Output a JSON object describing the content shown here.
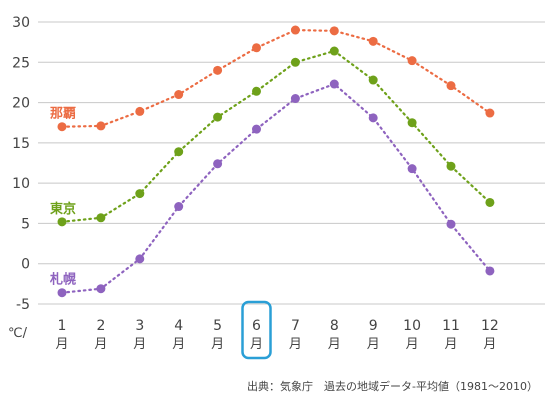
{
  "chart_data": {
    "type": "line",
    "x": [
      "1",
      "2",
      "3",
      "4",
      "5",
      "6",
      "7",
      "8",
      "9",
      "10",
      "11",
      "12"
    ],
    "x_unit": "月",
    "highlighted_x": "6",
    "y_unit": "℃/",
    "ylim": [
      -5,
      30
    ],
    "yticks": [
      30,
      25,
      20,
      15,
      10,
      5,
      0,
      -5
    ],
    "grid": true,
    "series": [
      {
        "name": "那覇",
        "color": "#ec6c43",
        "values": [
          17.0,
          17.1,
          18.9,
          21.0,
          24.0,
          26.8,
          29.0,
          28.9,
          27.6,
          25.2,
          22.1,
          18.7
        ]
      },
      {
        "name": "東京",
        "color": "#6ea11a",
        "values": [
          5.2,
          5.7,
          8.7,
          13.9,
          18.2,
          21.4,
          25.0,
          26.4,
          22.8,
          17.5,
          12.1,
          7.6
        ]
      },
      {
        "name": "札幌",
        "color": "#8e63bf",
        "values": [
          -3.6,
          -3.1,
          0.6,
          7.1,
          12.4,
          16.7,
          20.5,
          22.3,
          18.1,
          11.8,
          4.9,
          -0.9
        ]
      }
    ],
    "source": "出典：気象庁　過去の地域データ-平均値（1981〜2010）"
  }
}
